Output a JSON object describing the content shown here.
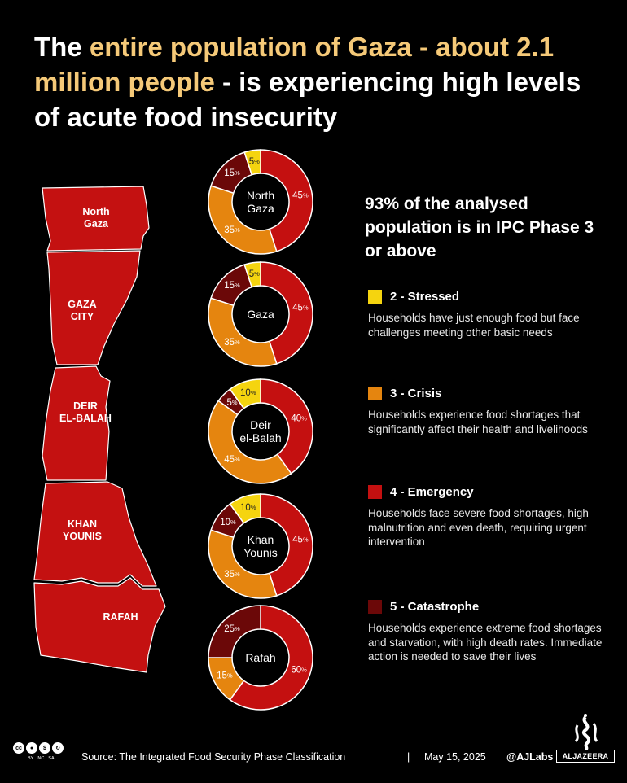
{
  "title": {
    "part1": "The ",
    "highlight": "entire population of Gaza - about 2.1 million people",
    "part2": " - is experiencing high levels of acute food insecurity"
  },
  "summary": "93% of the analysed population is in IPC Phase 3 or above",
  "map": {
    "regions": [
      {
        "name": "North Gaza",
        "lines": [
          "North",
          "Gaza"
        ]
      },
      {
        "name": "Gaza City",
        "lines": [
          "GAZA",
          "CITY"
        ]
      },
      {
        "name": "Deir el-Balah",
        "lines": [
          "DEIR",
          "EL-BALAH"
        ]
      },
      {
        "name": "Khan Younis",
        "lines": [
          "KHAN",
          "YOUNIS"
        ]
      },
      {
        "name": "Rafah",
        "lines": [
          "RAFAH"
        ]
      }
    ]
  },
  "colors": {
    "stressed": "#f5d40f",
    "crisis": "#e5850f",
    "emergency": "#c41010",
    "catastrophe": "#6b0808",
    "map": "#c41111"
  },
  "chart_data": {
    "type": "pie",
    "variant": "donut",
    "categories": [
      "2 - Stressed",
      "3 - Crisis",
      "4 - Emergency",
      "5 - Catastrophe"
    ],
    "series": [
      {
        "name": "North Gaza",
        "label_lines": [
          "North",
          "Gaza"
        ],
        "values": [
          5,
          35,
          45,
          15
        ]
      },
      {
        "name": "Gaza",
        "label_lines": [
          "Gaza"
        ],
        "values": [
          5,
          35,
          45,
          15
        ]
      },
      {
        "name": "Deir el-Balah",
        "label_lines": [
          "Deir",
          "el-Balah"
        ],
        "values": [
          10,
          45,
          40,
          5
        ]
      },
      {
        "name": "Khan Younis",
        "label_lines": [
          "Khan",
          "Younis"
        ],
        "values": [
          10,
          35,
          45,
          10
        ]
      },
      {
        "name": "Rafah",
        "label_lines": [
          "Rafah"
        ],
        "values": [
          0,
          15,
          60,
          25
        ]
      }
    ],
    "slice_order": [
      "Emergency",
      "Crisis",
      "Catastrophe",
      "Stressed"
    ]
  },
  "legend": [
    {
      "key": "stressed",
      "label": "2 - Stressed",
      "desc": "Households have just enough food but face challenges meeting other basic needs"
    },
    {
      "key": "crisis",
      "label": "3 - Crisis",
      "desc": "Households experience food shortages that significantly affect their health and livelihoods"
    },
    {
      "key": "emergency",
      "label": "4 - Emergency",
      "desc": "Households face severe food shortages, high malnutrition and even death, requiring urgent intervention"
    },
    {
      "key": "catastrophe",
      "label": "5 - Catastrophe",
      "desc": "Households experience extreme food shortages and starvation, with high death rates. Immediate action is needed to save their lives"
    }
  ],
  "footer": {
    "source": "Source:  The Integrated Food Security Phase Classification",
    "separator": "|",
    "date": "May 15, 2025",
    "handle": "@AJLabs",
    "logo_text": "ALJAZEERA",
    "license": [
      "BY",
      "NC",
      "SA"
    ]
  }
}
